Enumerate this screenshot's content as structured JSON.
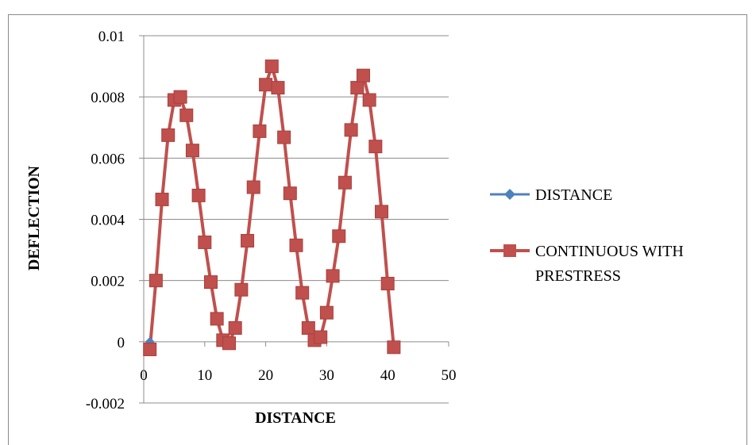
{
  "chart_data": {
    "type": "line",
    "xlabel": "DISTANCE",
    "ylabel": "DEFLECTION",
    "xlim": [
      0,
      50
    ],
    "ylim": [
      -0.002,
      0.01
    ],
    "x_ticks": [
      "0",
      "10",
      "20",
      "30",
      "40",
      "50"
    ],
    "y_ticks": [
      "-0.002",
      "0",
      "0.002",
      "0.004",
      "0.006",
      "0.008",
      "0.01"
    ],
    "x_tick_values": [
      0,
      10,
      20,
      30,
      40,
      50
    ],
    "y_tick_values": [
      -0.002,
      0,
      0.002,
      0.004,
      0.006,
      0.008,
      0.01
    ],
    "grid": "horizontal",
    "legend_position": "right",
    "series": [
      {
        "name": "DISTANCE",
        "color": "#4f81bd",
        "marker": "diamond",
        "points": [
          [
            1,
            0
          ]
        ]
      },
      {
        "name": "CONTINUOUS WITH PRESTRESS",
        "color": "#c0504d",
        "marker": "square",
        "points": [
          [
            1,
            -0.00025
          ],
          [
            2,
            0.002
          ],
          [
            3,
            0.00465
          ],
          [
            4,
            0.00675
          ],
          [
            5,
            0.0079
          ],
          [
            6,
            0.008
          ],
          [
            7,
            0.0074
          ],
          [
            8,
            0.00625
          ],
          [
            9,
            0.00478
          ],
          [
            10,
            0.00325
          ],
          [
            11,
            0.00195
          ],
          [
            12,
            0.00075
          ],
          [
            13,
            5e-05
          ],
          [
            14,
            -5e-05
          ],
          [
            15,
            0.00045
          ],
          [
            16,
            0.0017
          ],
          [
            17,
            0.0033
          ],
          [
            18,
            0.00505
          ],
          [
            19,
            0.00688
          ],
          [
            20,
            0.0084
          ],
          [
            21,
            0.009
          ],
          [
            22,
            0.0083
          ],
          [
            23,
            0.00668
          ],
          [
            24,
            0.00485
          ],
          [
            25,
            0.00315
          ],
          [
            26,
            0.0016
          ],
          [
            27,
            0.00045
          ],
          [
            28,
            5e-05
          ],
          [
            29,
            0.00015
          ],
          [
            30,
            0.00095
          ],
          [
            31,
            0.00215
          ],
          [
            32,
            0.00345
          ],
          [
            33,
            0.0052
          ],
          [
            34,
            0.00692
          ],
          [
            35,
            0.0083
          ],
          [
            36,
            0.0087
          ],
          [
            37,
            0.0079
          ],
          [
            38,
            0.00638
          ],
          [
            39,
            0.00425
          ],
          [
            40,
            0.0019
          ],
          [
            41,
            -0.00018
          ]
        ]
      }
    ]
  }
}
